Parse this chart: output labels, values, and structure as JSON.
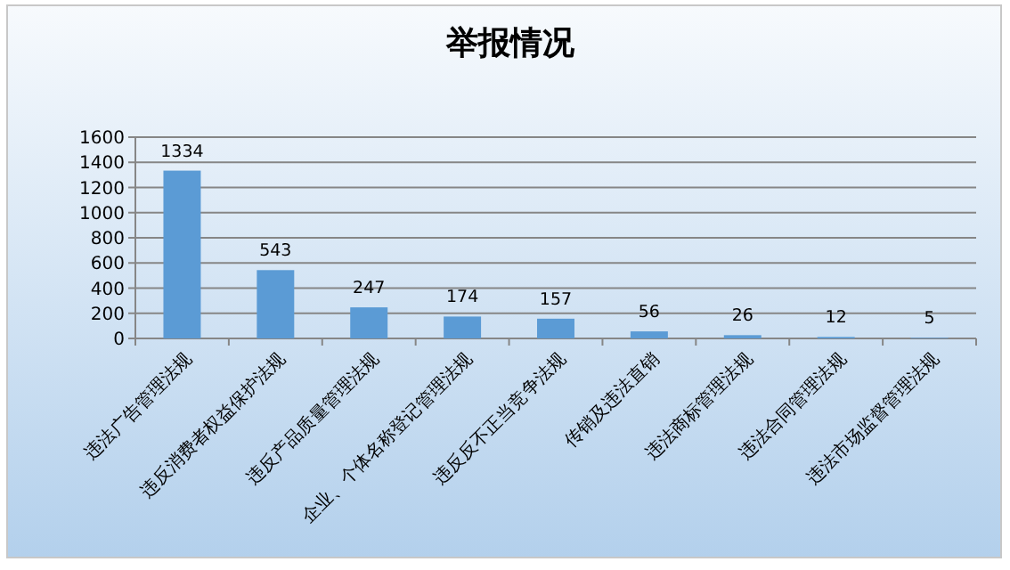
{
  "chart_data": {
    "type": "bar",
    "title": "举报情况",
    "categories": [
      "违法广告管理法规",
      "违反消费者权益保护法规",
      "违反产品质量管理法规",
      "企业、个体名称登记管理法规",
      "违反反不正当竞争法规",
      "传销及违法直销",
      "违法商标管理法规",
      "违法合同管理法规",
      "违法市场监督管理法规"
    ],
    "values": [
      1334,
      543,
      247,
      174,
      157,
      56,
      26,
      12,
      5
    ],
    "color": "#5b9bd5",
    "ylim": [
      0,
      1600
    ],
    "yticks": [
      0,
      200,
      400,
      600,
      800,
      1000,
      1200,
      1400,
      1600
    ],
    "grid": "y",
    "data_labels": true
  }
}
